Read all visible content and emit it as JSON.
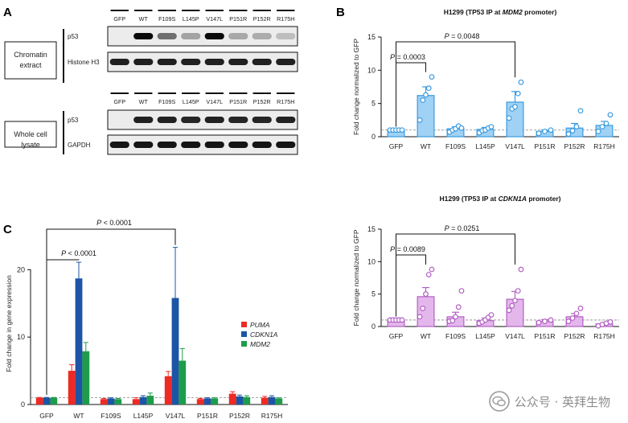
{
  "panel_labels": {
    "a": "A",
    "b": "B",
    "c": "C"
  },
  "blot": {
    "lanes": [
      "GFP",
      "WT",
      "F109S",
      "L145P",
      "V147L",
      "P151R",
      "P152R",
      "R175H"
    ],
    "blocks": [
      {
        "fraction_label": [
          "Chromatin",
          "extract"
        ],
        "rows": [
          {
            "label": "p53",
            "intensities": [
              0.0,
              1.0,
              0.55,
              0.32,
              1.0,
              0.3,
              0.28,
              0.2
            ]
          },
          {
            "label": "Histone H3",
            "intensities": [
              0.9,
              0.9,
              0.9,
              0.9,
              0.9,
              0.9,
              0.9,
              0.9
            ]
          }
        ]
      },
      {
        "fraction_label": [
          "Whole cell",
          "lysate"
        ],
        "rows": [
          {
            "label": "p53",
            "intensities": [
              0.0,
              0.9,
              0.9,
              0.88,
              0.9,
              0.88,
              0.88,
              0.9
            ]
          },
          {
            "label": "GAPDH",
            "intensities": [
              0.95,
              0.95,
              0.95,
              0.95,
              0.95,
              0.95,
              0.95,
              0.95
            ]
          }
        ]
      }
    ]
  },
  "chart_data": [
    {
      "type": "bar",
      "title_parts": [
        "H1299 (TP53 IP at ",
        "MDM2",
        " promoter)"
      ],
      "ylabel": "Fold change normalized to GFP",
      "categories": [
        "GFP",
        "WT",
        "F109S",
        "L145P",
        "V147L",
        "P151R",
        "P152R",
        "R175H"
      ],
      "values": [
        1.0,
        6.2,
        1.2,
        1.1,
        5.2,
        0.8,
        1.3,
        1.7
      ],
      "errors": [
        0.05,
        1.3,
        0.3,
        0.3,
        1.6,
        0.2,
        0.7,
        0.6
      ],
      "points": [
        [
          1.0,
          1.0,
          1.0,
          1.0,
          1.0
        ],
        [
          2.5,
          5.5,
          6.3,
          7.3,
          9.0
        ],
        [
          0.7,
          1.0,
          1.2,
          1.6,
          1.3
        ],
        [
          0.6,
          0.9,
          1.0,
          1.3,
          1.5
        ],
        [
          2.8,
          4.2,
          4.5,
          6.5,
          8.2
        ],
        [
          0.5,
          0.8,
          1.0
        ],
        [
          0.4,
          0.9,
          1.5,
          3.9
        ],
        [
          0.8,
          1.5,
          2.0,
          3.3
        ]
      ],
      "ylim": [
        0,
        15
      ],
      "yticks": [
        0,
        5,
        10,
        15
      ],
      "reference_line": 1,
      "color": "#3a9be0",
      "fill": "#9fd2f4",
      "annotations": [
        {
          "from": 0,
          "to": 1,
          "label": "P = 0.0003"
        },
        {
          "from": 0,
          "to": 4,
          "label": "P = 0.0048"
        }
      ]
    },
    {
      "type": "bar",
      "title_parts": [
        "H1299 (TP53 IP at ",
        "CDKN1A",
        " promoter)"
      ],
      "ylabel": "Fold change normalized to GFP",
      "categories": [
        "GFP",
        "WT",
        "F109S",
        "L145P",
        "V147L",
        "P151R",
        "P152R",
        "R175H"
      ],
      "values": [
        1.0,
        4.6,
        1.5,
        0.9,
        4.2,
        0.8,
        1.5,
        0.4
      ],
      "errors": [
        0.05,
        1.4,
        0.7,
        0.4,
        1.2,
        0.25,
        0.5,
        0.2
      ],
      "points": [
        [
          1.0,
          1.0,
          1.0,
          1.0,
          1.0
        ],
        [
          1.5,
          2.8,
          5.0,
          8.0,
          8.8
        ],
        [
          0.8,
          0.9,
          1.5,
          3.0,
          5.5
        ],
        [
          0.5,
          0.7,
          1.0,
          1.4,
          1.8
        ],
        [
          2.5,
          3.2,
          4.0,
          5.5,
          8.8
        ],
        [
          0.6,
          0.8,
          1.0
        ],
        [
          0.8,
          1.3,
          2.0,
          2.8
        ],
        [
          0.1,
          0.3,
          0.5,
          0.7
        ]
      ],
      "ylim": [
        0,
        15
      ],
      "yticks": [
        0,
        5,
        10,
        15
      ],
      "reference_line": 1,
      "color": "#b35fc4",
      "fill": "#e4b7ec",
      "annotations": [
        {
          "from": 0,
          "to": 1,
          "label": "P = 0.0089"
        },
        {
          "from": 0,
          "to": 4,
          "label": "P = 0.0251"
        }
      ]
    },
    {
      "type": "bar",
      "ylabel": "Fold change in gene expression",
      "categories": [
        "GFP",
        "WT",
        "F109S",
        "L145P",
        "V147L",
        "P151R",
        "P152R",
        "R175H"
      ],
      "series": [
        {
          "name": "PUMA",
          "color": "#ee2a24",
          "values": [
            1.0,
            5.0,
            0.8,
            0.8,
            4.2,
            0.8,
            1.6,
            1.0
          ],
          "errors": [
            0.05,
            0.9,
            0.1,
            0.2,
            0.7,
            0.1,
            0.3,
            0.2
          ]
        },
        {
          "name": "CDKN1A",
          "color": "#1c55a6",
          "values": [
            1.0,
            18.7,
            0.9,
            1.1,
            15.8,
            0.9,
            1.2,
            1.1
          ],
          "errors": [
            0.05,
            2.4,
            0.1,
            0.2,
            7.5,
            0.1,
            0.2,
            0.2
          ]
        },
        {
          "name": "MDM2",
          "color": "#1e9c4c",
          "values": [
            1.0,
            7.9,
            0.8,
            1.3,
            6.5,
            0.9,
            1.1,
            0.9
          ],
          "errors": [
            0.05,
            1.3,
            0.1,
            0.4,
            1.8,
            0.1,
            0.2,
            0.1
          ]
        }
      ],
      "ylim": [
        0,
        26
      ],
      "yticks": [
        0,
        10,
        20
      ],
      "reference_line": 1,
      "annotations": [
        {
          "from": 0,
          "to": 1,
          "label": "P < 0.0001"
        },
        {
          "from": 0,
          "to": 4,
          "label": "P < 0.0001"
        }
      ],
      "legend_position": "right"
    }
  ],
  "watermark": {
    "text": "公众号 · 英拜生物"
  }
}
